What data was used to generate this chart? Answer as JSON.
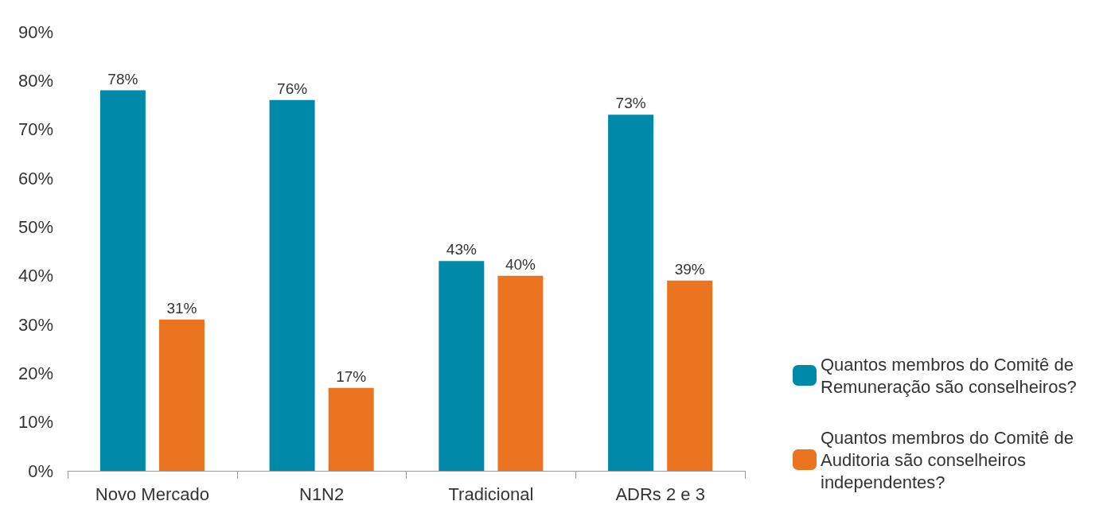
{
  "chart_data": {
    "type": "bar",
    "categories": [
      "Novo Mercado",
      "N1N2",
      "Tradicional",
      "ADRs 2 e 3"
    ],
    "series": [
      {
        "name": "Quantos membros do Comitê de Remuneração são conselheiros?",
        "color": "#0089a8",
        "values": [
          78,
          76,
          43,
          73
        ],
        "value_labels": [
          "78%",
          "76%",
          "43%",
          "73%"
        ]
      },
      {
        "name": "Quantos membros do Comitê de Auditoria são conselheiros independentes?",
        "color": "#eb7420",
        "values": [
          31,
          17,
          40,
          39
        ],
        "value_labels": [
          "31%",
          "17%",
          "40%",
          "39%"
        ]
      }
    ],
    "ylim": [
      0,
      90
    ],
    "yticks": [
      {
        "value": 0,
        "label": "0%"
      },
      {
        "value": 10,
        "label": "10%"
      },
      {
        "value": 20,
        "label": "20%"
      },
      {
        "value": 30,
        "label": "30%"
      },
      {
        "value": 40,
        "label": "40%"
      },
      {
        "value": 50,
        "label": "50%"
      },
      {
        "value": 60,
        "label": "60%"
      },
      {
        "value": 70,
        "label": "70%"
      },
      {
        "value": 80,
        "label": "80%"
      },
      {
        "value": 90,
        "label": "90%"
      }
    ],
    "grid": false,
    "legend": "right"
  }
}
